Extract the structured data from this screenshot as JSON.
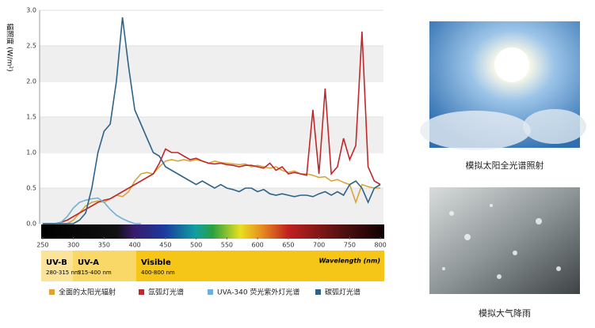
{
  "chart_data": {
    "type": "line",
    "y_label": "辐照度 (W/m²)",
    "x_label": "Wavelength (nm)",
    "x": [
      250,
      260,
      270,
      280,
      290,
      300,
      310,
      320,
      330,
      340,
      350,
      360,
      370,
      380,
      390,
      400,
      410,
      420,
      430,
      440,
      450,
      460,
      470,
      480,
      490,
      500,
      510,
      520,
      530,
      540,
      550,
      560,
      570,
      580,
      590,
      600,
      610,
      620,
      630,
      640,
      650,
      660,
      670,
      680,
      690,
      700,
      710,
      720,
      730,
      740,
      750,
      760,
      770,
      780,
      790,
      800
    ],
    "xlim": [
      245,
      805
    ],
    "xticks": [
      250,
      300,
      350,
      400,
      450,
      500,
      550,
      600,
      650,
      700,
      750,
      800
    ],
    "ylim": [
      0,
      3
    ],
    "yticks": [
      {
        "value": 0,
        "label": "0.0"
      },
      0.5,
      {
        "value": 1,
        "label": "1.0"
      },
      1.5,
      {
        "value": 2,
        "label": "2.0"
      },
      2.5,
      {
        "value": 3,
        "label": "3.0"
      }
    ],
    "grid": true,
    "series": [
      {
        "name": "全面的太阳光辐射",
        "color": "#d9a53a",
        "values": [
          0,
          0,
          0,
          0,
          0,
          0.05,
          0.15,
          0.25,
          0.3,
          0.32,
          0.3,
          0.35,
          0.4,
          0.38,
          0.45,
          0.6,
          0.7,
          0.72,
          0.7,
          0.8,
          0.88,
          0.9,
          0.88,
          0.9,
          0.88,
          0.9,
          0.88,
          0.85,
          0.88,
          0.86,
          0.85,
          0.84,
          0.83,
          0.84,
          0.8,
          0.82,
          0.8,
          0.78,
          0.8,
          0.75,
          0.72,
          0.74,
          0.7,
          0.7,
          0.68,
          0.65,
          0.66,
          0.6,
          0.62,
          0.58,
          0.55,
          0.3,
          0.55,
          0.52,
          0.5,
          0.5
        ]
      },
      {
        "name": "氙弧灯光谱",
        "color": "#c0282a",
        "values": [
          0,
          0,
          0,
          0.02,
          0.05,
          0.1,
          0.15,
          0.2,
          0.25,
          0.3,
          0.33,
          0.35,
          0.4,
          0.45,
          0.5,
          0.55,
          0.6,
          0.65,
          0.7,
          0.85,
          1.05,
          1.0,
          1.0,
          0.95,
          0.9,
          0.92,
          0.88,
          0.85,
          0.84,
          0.85,
          0.83,
          0.82,
          0.8,
          0.82,
          0.82,
          0.8,
          0.78,
          0.85,
          0.75,
          0.8,
          0.7,
          0.72,
          0.7,
          0.68,
          1.6,
          0.7,
          1.9,
          0.7,
          0.8,
          1.2,
          0.9,
          1.1,
          2.7,
          0.8,
          0.6,
          0.55
        ]
      },
      {
        "name": "UVA-340 荧光紫外灯光谱",
        "color": "#6fb0d8",
        "values": [
          0,
          0,
          0,
          0.02,
          0.1,
          0.22,
          0.3,
          0.33,
          0.35,
          0.36,
          0.3,
          0.2,
          0.12,
          0.07,
          0.03,
          0,
          0,
          null,
          null,
          null,
          null,
          null,
          null,
          null,
          null,
          null,
          null,
          null,
          null,
          null,
          null,
          null,
          null,
          null,
          null,
          null,
          null,
          null,
          null,
          null,
          null,
          null,
          null,
          null,
          null,
          null,
          null,
          null,
          null,
          null,
          null,
          null,
          null,
          null,
          null,
          null
        ]
      },
      {
        "name": "碳弧灯光谱",
        "color": "#2e6388",
        "values": [
          0,
          0,
          0,
          0,
          0,
          0,
          0.05,
          0.15,
          0.5,
          1.0,
          1.3,
          1.4,
          2.0,
          2.9,
          2.2,
          1.6,
          1.4,
          1.2,
          1.0,
          0.95,
          0.8,
          0.75,
          0.7,
          0.65,
          0.6,
          0.55,
          0.6,
          0.55,
          0.5,
          0.55,
          0.5,
          0.48,
          0.45,
          0.5,
          0.5,
          0.45,
          0.48,
          0.42,
          0.4,
          0.42,
          0.4,
          0.38,
          0.4,
          0.4,
          0.38,
          0.42,
          0.45,
          0.4,
          0.45,
          0.4,
          0.55,
          0.6,
          0.5,
          0.3,
          0.5,
          0.55
        ]
      }
    ],
    "bands": [
      {
        "name": "UV-B",
        "range": "280-315 nm"
      },
      {
        "name": "UV-A",
        "range": "315-400 nm"
      },
      {
        "name": "Visible",
        "range": "400-800 nm"
      }
    ]
  },
  "images": [
    {
      "caption": "模拟太阳全光谱照射"
    },
    {
      "caption": "模拟大气降雨"
    }
  ]
}
